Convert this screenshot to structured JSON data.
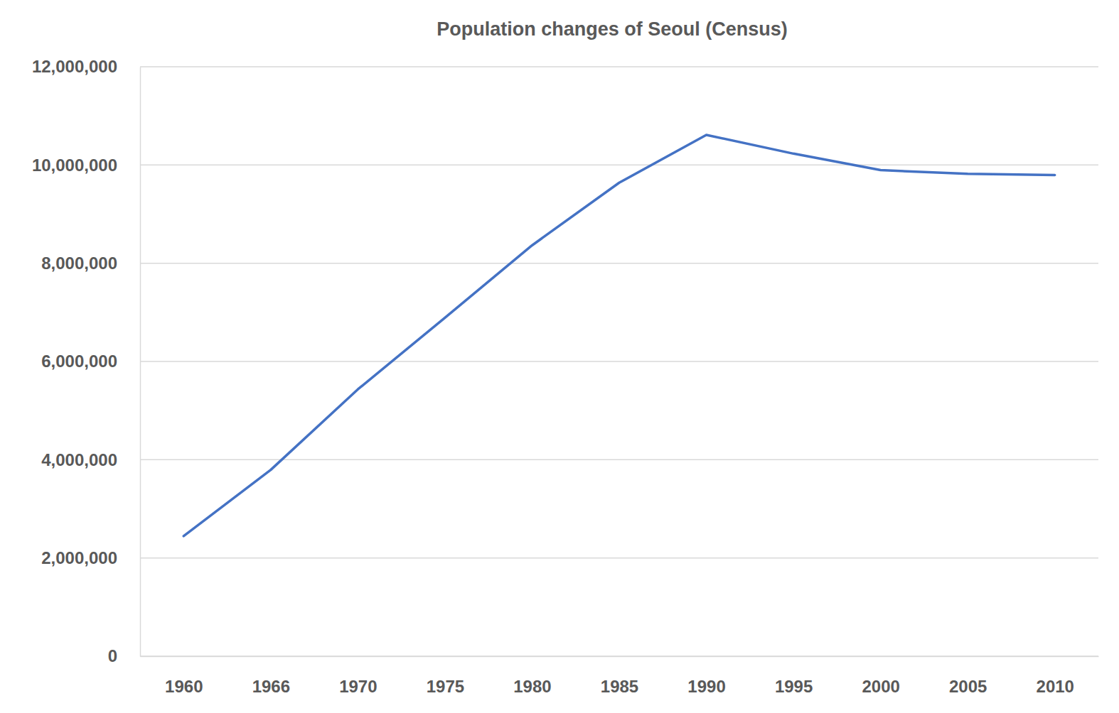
{
  "chart_data": {
    "type": "line",
    "title": "Population changes of Seoul (Census)",
    "categories": [
      "1960",
      "1966",
      "1970",
      "1975",
      "1980",
      "1985",
      "1990",
      "1995",
      "2000",
      "2005",
      "2010"
    ],
    "values": [
      2445402,
      3793280,
      5433198,
      6889502,
      8364379,
      9639110,
      10612577,
      10231217,
      9895217,
      9820171,
      9794304
    ],
    "color": "#4472c4",
    "ylim": [
      0,
      12000000
    ],
    "yticks": [
      0,
      {
        "value": 2000000,
        "label": "2,000,000"
      },
      {
        "value": 4000000,
        "label": "4,000,000"
      },
      {
        "value": 6000000,
        "label": "6,000,000"
      },
      {
        "value": 8000000,
        "label": "8,000,000"
      },
      {
        "value": 10000000,
        "label": "10,000,000"
      },
      {
        "value": 12000000,
        "label": "12,000,000"
      }
    ],
    "grid": true
  }
}
